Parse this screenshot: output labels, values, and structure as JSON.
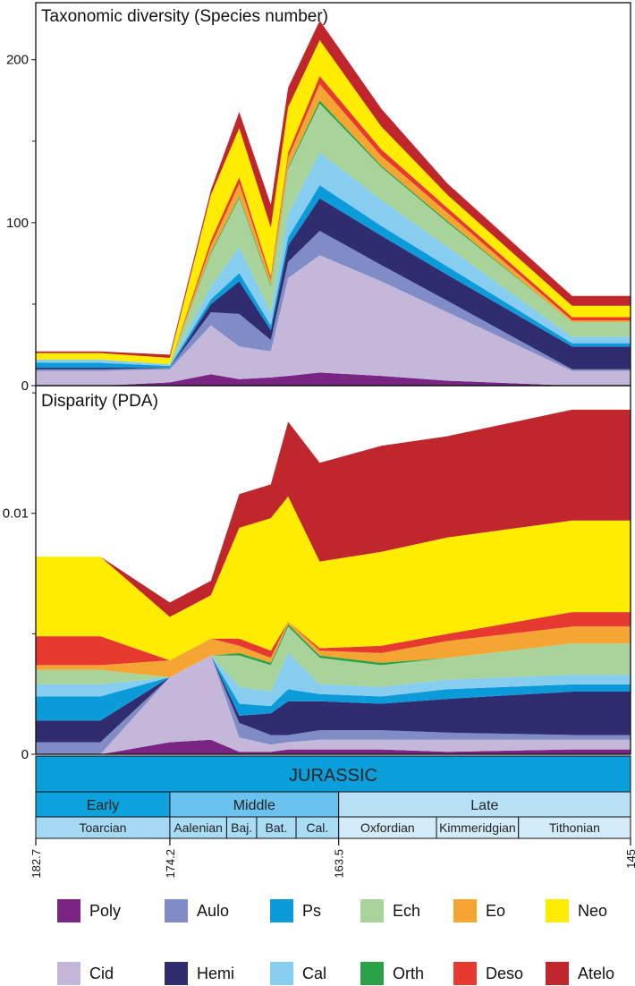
{
  "colors": {
    "Poly": "#7a2584",
    "Aulo": "#7f8cc6",
    "Ps": "#0b9bd8",
    "Ech": "#a8d39a",
    "Eo": "#f5a632",
    "Neo": "#ffec00",
    "Cid": "#c5b7da",
    "Hemi": "#2f2d70",
    "Cal": "#86cdf0",
    "Orth": "#2aa146",
    "Deso": "#e6392f",
    "Atelo": "#c0272d"
  },
  "legend": [
    {
      "key": "Poly",
      "label": "Poly"
    },
    {
      "key": "Aulo",
      "label": "Aulo"
    },
    {
      "key": "Ps",
      "label": "Ps"
    },
    {
      "key": "Ech",
      "label": "Ech"
    },
    {
      "key": "Eo",
      "label": "Eo"
    },
    {
      "key": "Neo",
      "label": "Neo"
    },
    {
      "key": "Cid",
      "label": "Cid"
    },
    {
      "key": "Hemi",
      "label": "Hemi"
    },
    {
      "key": "Cal",
      "label": "Cal"
    },
    {
      "key": "Orth",
      "label": "Orth"
    },
    {
      "key": "Deso",
      "label": "Deso"
    },
    {
      "key": "Atelo",
      "label": "Atelo"
    }
  ],
  "timescale": {
    "era": "JURASSIC",
    "epochs": [
      {
        "label": "Early",
        "start": 182.7,
        "end": 174.2
      },
      {
        "label": "Middle",
        "start": 174.2,
        "end": 163.5
      },
      {
        "label": "Late",
        "start": 163.5,
        "end": 145
      }
    ],
    "stages": [
      {
        "label": "Toarcian",
        "start": 182.7,
        "end": 174.2
      },
      {
        "label": "Aalenian",
        "start": 174.2,
        "end": 170.6
      },
      {
        "label": "Baj.",
        "start": 170.6,
        "end": 168.7
      },
      {
        "label": "Bat.",
        "start": 168.7,
        "end": 166.2
      },
      {
        "label": "Cal.",
        "start": 166.2,
        "end": 163.5
      },
      {
        "label": "Oxfordian",
        "start": 163.5,
        "end": 157.3
      },
      {
        "label": "Kimmeridgian",
        "start": 157.3,
        "end": 152.1
      },
      {
        "label": "Tithonian",
        "start": 152.1,
        "end": 145
      }
    ],
    "ticks": [
      "182.7",
      "174.2",
      "163.5",
      "145"
    ]
  },
  "chart_data": [
    {
      "type": "area",
      "stacked": true,
      "title": "Taxonomic diversity (Species number)",
      "xlabel": "",
      "ylabel": "",
      "xlim": [
        182.7,
        145
      ],
      "ylim": [
        0,
        235
      ],
      "yticks": [
        0,
        100,
        200
      ],
      "x": [
        182.7,
        178.6,
        174.2,
        171.6,
        169.8,
        167.8,
        166.7,
        164.7,
        160.8,
        156.6,
        148.7,
        145
      ],
      "series": [
        {
          "name": "Poly",
          "values": [
            0,
            0,
            2,
            7,
            4,
            5,
            6,
            8,
            6,
            3,
            0,
            0
          ]
        },
        {
          "name": "Cid",
          "values": [
            9,
            9,
            8,
            30,
            20,
            16,
            60,
            72,
            58,
            42,
            9,
            9
          ]
        },
        {
          "name": "Aulo",
          "values": [
            1,
            1,
            1,
            8,
            20,
            7,
            10,
            15,
            10,
            7,
            1,
            1
          ]
        },
        {
          "name": "Hemi",
          "values": [
            1,
            1,
            0,
            5,
            20,
            6,
            10,
            20,
            18,
            16,
            14,
            14
          ]
        },
        {
          "name": "Ps",
          "values": [
            3,
            3,
            1,
            3,
            5,
            3,
            5,
            8,
            6,
            5,
            2,
            2
          ]
        },
        {
          "name": "Cal",
          "values": [
            2,
            2,
            1,
            8,
            16,
            8,
            14,
            20,
            16,
            12,
            4,
            4
          ]
        },
        {
          "name": "Ech",
          "values": [
            0,
            0,
            0,
            20,
            30,
            16,
            28,
            30,
            20,
            15,
            9,
            9
          ]
        },
        {
          "name": "Orth",
          "values": [
            0,
            0,
            0,
            1,
            1,
            1,
            1,
            2,
            1,
            1,
            0,
            0
          ]
        },
        {
          "name": "Eo",
          "values": [
            0,
            0,
            0,
            4,
            8,
            3,
            6,
            10,
            6,
            5,
            1,
            1
          ]
        },
        {
          "name": "Deso",
          "values": [
            0,
            0,
            0,
            3,
            4,
            2,
            3,
            5,
            4,
            3,
            2,
            2
          ]
        },
        {
          "name": "Neo",
          "values": [
            4,
            4,
            4,
            28,
            30,
            30,
            28,
            22,
            14,
            8,
            7,
            7
          ]
        },
        {
          "name": "Atelo",
          "values": [
            1,
            1,
            2,
            3,
            10,
            14,
            12,
            12,
            11,
            7,
            6,
            6
          ]
        }
      ]
    },
    {
      "type": "area",
      "stacked": true,
      "title": "Disparity (PDA)",
      "xlabel": "",
      "ylabel": "",
      "xlim": [
        182.7,
        145
      ],
      "ylim": [
        0,
        0.0153
      ],
      "yticks": [
        0,
        0.01
      ],
      "x": [
        182.7,
        178.6,
        174.2,
        171.6,
        169.8,
        167.8,
        166.7,
        164.7,
        160.8,
        156.6,
        148.7,
        145
      ],
      "series": [
        {
          "name": "Poly",
          "values": [
            0,
            0,
            0.0005,
            0.0006,
            0.0001,
            0.0001,
            0.0002,
            0.0002,
            0.0002,
            0.0001,
            0.0002,
            0.0002
          ]
        },
        {
          "name": "Cid",
          "values": [
            0,
            0,
            0.0027,
            0.0035,
            0.0006,
            0.0003,
            0.0003,
            0.0004,
            0.0004,
            0.0005,
            0.0004,
            0.0004
          ]
        },
        {
          "name": "Aulo",
          "values": [
            0.0005,
            0.0005,
            0,
            0,
            0.0006,
            0.0004,
            0.0003,
            0.0004,
            0.0004,
            0.0003,
            0.0002,
            0.0002
          ]
        },
        {
          "name": "Hemi",
          "values": [
            0.0009,
            0.0009,
            0,
            0,
            0.0003,
            0.0009,
            0.0014,
            0.0012,
            0.0011,
            0.0014,
            0.0018,
            0.0018
          ]
        },
        {
          "name": "Ps",
          "values": [
            0.001,
            0.001,
            0,
            0,
            0.0005,
            0.0003,
            0.0005,
            0.0003,
            0.0003,
            0.0004,
            0.0003,
            0.0003
          ]
        },
        {
          "name": "Cal",
          "values": [
            0.0005,
            0.0005,
            0,
            0,
            0.0007,
            0.0006,
            0.0015,
            0.0004,
            0.0004,
            0.0004,
            0.0004,
            0.0004
          ]
        },
        {
          "name": "Ech",
          "values": [
            0.0006,
            0.0006,
            0,
            0,
            0.0013,
            0.0011,
            0.0011,
            0.0011,
            0.0009,
            0.0009,
            0.0013,
            0.0013
          ]
        },
        {
          "name": "Orth",
          "values": [
            0,
            0,
            0,
            0,
            0.0001,
            0.0001,
            0.0001,
            0.0001,
            0.0001,
            0,
            0,
            0
          ]
        },
        {
          "name": "Eo",
          "values": [
            0.0002,
            0.0002,
            0.0007,
            0.0007,
            0.0003,
            0.0002,
            0.0001,
            0.0002,
            0.0004,
            0.0007,
            0.0007,
            0.0007
          ]
        },
        {
          "name": "Deso",
          "values": [
            0.0012,
            0.0012,
            0,
            0,
            0.0003,
            0.0003,
            0,
            0.0001,
            0.0003,
            0.0003,
            0.0006,
            0.0006
          ]
        },
        {
          "name": "Neo",
          "values": [
            0.0033,
            0.0033,
            0.0018,
            0.0018,
            0.0046,
            0.0055,
            0.0052,
            0.0036,
            0.0039,
            0.004,
            0.0038,
            0.0038
          ]
        },
        {
          "name": "Atelo",
          "values": [
            0,
            0,
            0.0006,
            0.0006,
            0.0014,
            0.0014,
            0.0031,
            0.0041,
            0.0044,
            0.0042,
            0.0046,
            0.0046
          ]
        }
      ]
    }
  ]
}
